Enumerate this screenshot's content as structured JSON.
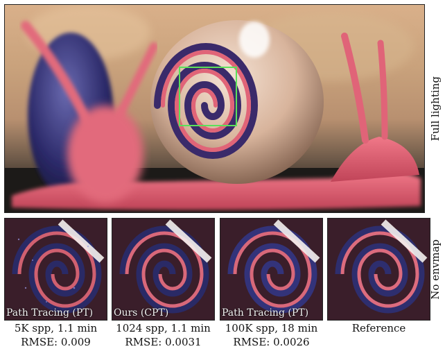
{
  "main": {
    "row_label": "Full lighting",
    "colors": {
      "snail_body": "#e05a6e",
      "shell": "#e2c4ae",
      "glass": "#2c2a6a",
      "highlight_box": "#5ce05a"
    }
  },
  "crops_row_label": "No envmap",
  "panels": [
    {
      "label": "Path Tracing (PT)",
      "spp": "5K spp, 1.1 min",
      "rmse": "RMSE: 0.009"
    },
    {
      "label": "Ours (CPT)",
      "spp": "1024 spp, 1.1 min",
      "rmse": "RMSE: 0.0031"
    },
    {
      "label": "Path Tracing (PT)",
      "spp": "100K spp, 18 min",
      "rmse": "RMSE: 0.0026"
    },
    {
      "label": "",
      "spp": "Reference",
      "rmse": ""
    }
  ]
}
